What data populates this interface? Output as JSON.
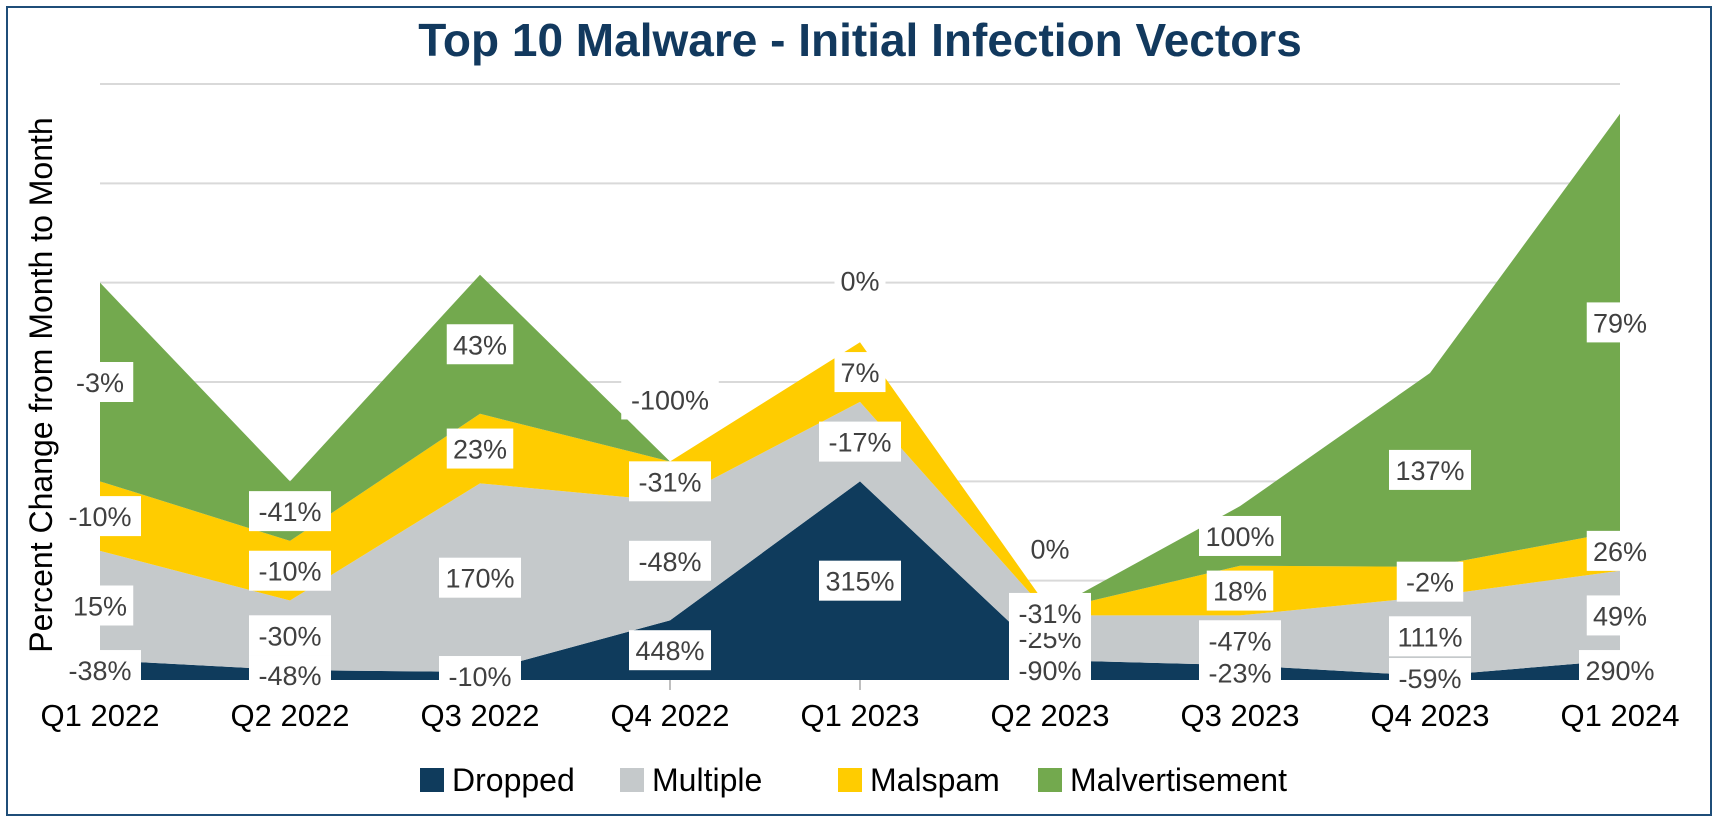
{
  "chart_data": {
    "type": "area",
    "stacked": true,
    "title": "Top 10 Malware - Initial Infection Vectors",
    "ylabel": "Percent Change from Month to Month",
    "xlabel": "",
    "categories": [
      "Q1 2022",
      "Q2 2022",
      "Q3 2022",
      "Q4 2022",
      "Q1 2023",
      "Q2 2023",
      "Q3 2023",
      "Q4 2023",
      "Q1 2024"
    ],
    "grid": true,
    "ylim": [
      0,
      600
    ],
    "legend_position": "bottom",
    "series": [
      {
        "name": "Dropped",
        "color": "#0f3b5c",
        "values": [
          20,
          10,
          8,
          60,
          200,
          20,
          15,
          4,
          20
        ],
        "labels": [
          "-38%",
          "-48%",
          "-10%",
          "448%",
          "315%",
          "-90%",
          "-23%",
          "-59%",
          "290%"
        ]
      },
      {
        "name": "Multiple",
        "color": "#c5c9cb",
        "values": [
          110,
          70,
          190,
          120,
          80,
          45,
          50,
          80,
          90
        ],
        "labels": [
          "15%",
          "-30%",
          "170%",
          "-48%",
          "-17%",
          "-25%",
          "-47%",
          "111%",
          "49%"
        ]
      },
      {
        "name": "Malspam",
        "color": "#ffcc00",
        "values": [
          70,
          60,
          70,
          40,
          60,
          5,
          50,
          30,
          40
        ],
        "labels": [
          "-10%",
          "-10%",
          "23%",
          "-31%",
          "7%",
          "-31%",
          "18%",
          "-2%",
          "26%"
        ]
      },
      {
        "name": "Malvertisement",
        "color": "#73a94e",
        "values": [
          200,
          60,
          140,
          0,
          0,
          0,
          60,
          195,
          420
        ],
        "labels": [
          "-3%",
          "-41%",
          "43%",
          "-100%",
          "0%",
          "0%",
          "100%",
          "137%",
          "79%"
        ]
      }
    ]
  }
}
